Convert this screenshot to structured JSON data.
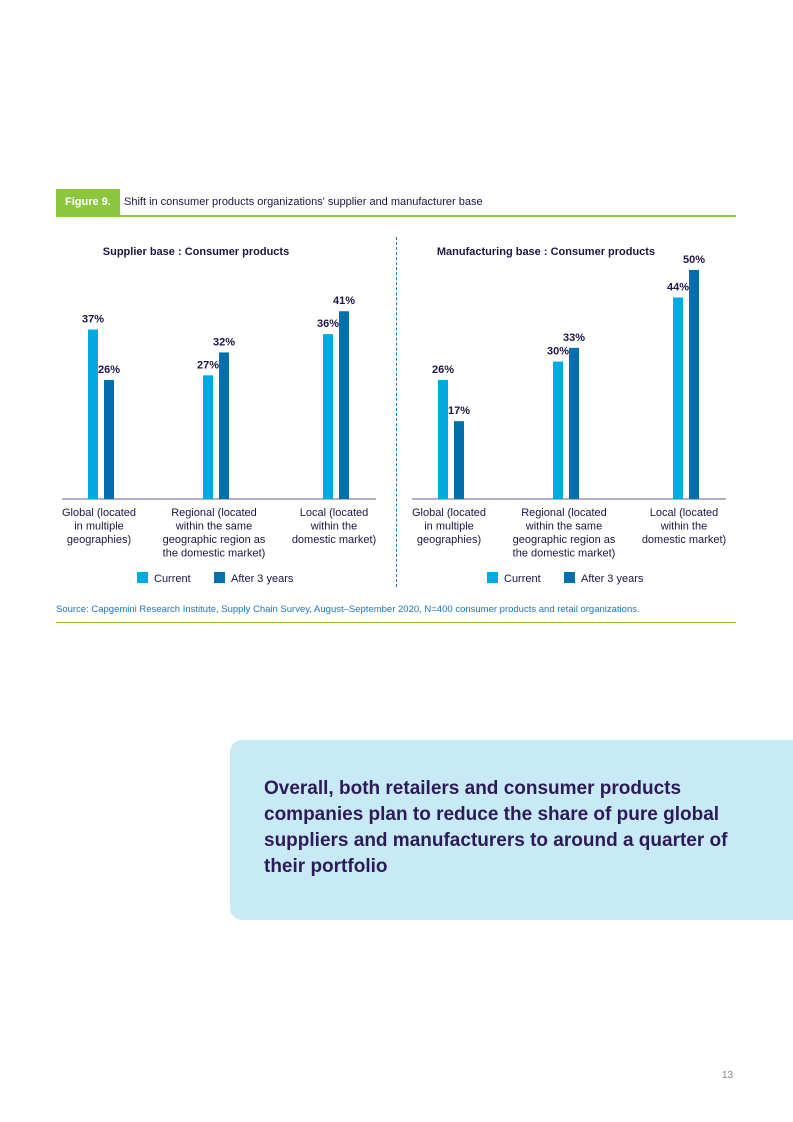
{
  "figure": {
    "badge": "Figure 9.",
    "title": "Shift in consumer products organizations' supplier and manufacturer base"
  },
  "colors": {
    "current": "#00a9e0",
    "after": "#0070ad",
    "accent": "#8cc63f",
    "text": "#1e1446"
  },
  "chart_data": [
    {
      "type": "bar",
      "title": "Supplier base : Consumer products",
      "categories": [
        [
          "Global (located",
          "in multiple",
          "geographies)"
        ],
        [
          "Regional (located",
          "within the same",
          "geographic region as",
          "the domestic market)"
        ],
        [
          "Local (located",
          "within the",
          "domestic market)"
        ]
      ],
      "series": [
        {
          "name": "Current",
          "values": [
            37,
            27,
            36
          ],
          "labels": [
            "37%",
            "27%",
            "36%"
          ]
        },
        {
          "name": "After 3 years",
          "values": [
            26,
            32,
            41
          ],
          "labels": [
            "26%",
            "32%",
            "41%"
          ]
        }
      ],
      "ylim": [
        0,
        50
      ],
      "legend": "bottom-center",
      "grid": false
    },
    {
      "type": "bar",
      "title": "Manufacturing base : Consumer products",
      "categories": [
        [
          "Global (located",
          "in multiple",
          "geographies)"
        ],
        [
          "Regional (located",
          "within the same",
          "geographic region as",
          "the domestic market)"
        ],
        [
          "Local (located",
          "within the",
          "domestic market)"
        ]
      ],
      "series": [
        {
          "name": "Current",
          "values": [
            26,
            30,
            44
          ],
          "labels": [
            "26%",
            "30%",
            "44%"
          ]
        },
        {
          "name": "After 3 years",
          "values": [
            17,
            33,
            50
          ],
          "labels": [
            "17%",
            "33%",
            "50%"
          ]
        }
      ],
      "ylim": [
        0,
        50
      ],
      "legend": "bottom-center",
      "grid": false
    }
  ],
  "source": "Source: Capgemini Research Institute, Supply Chain Survey, August–September 2020, N=400 consumer products and retail organizations.",
  "callout": "Overall, both retailers and consumer products companies plan to reduce the share of pure global suppliers and manufacturers to around a quarter of their portfolio",
  "page_number": "13"
}
